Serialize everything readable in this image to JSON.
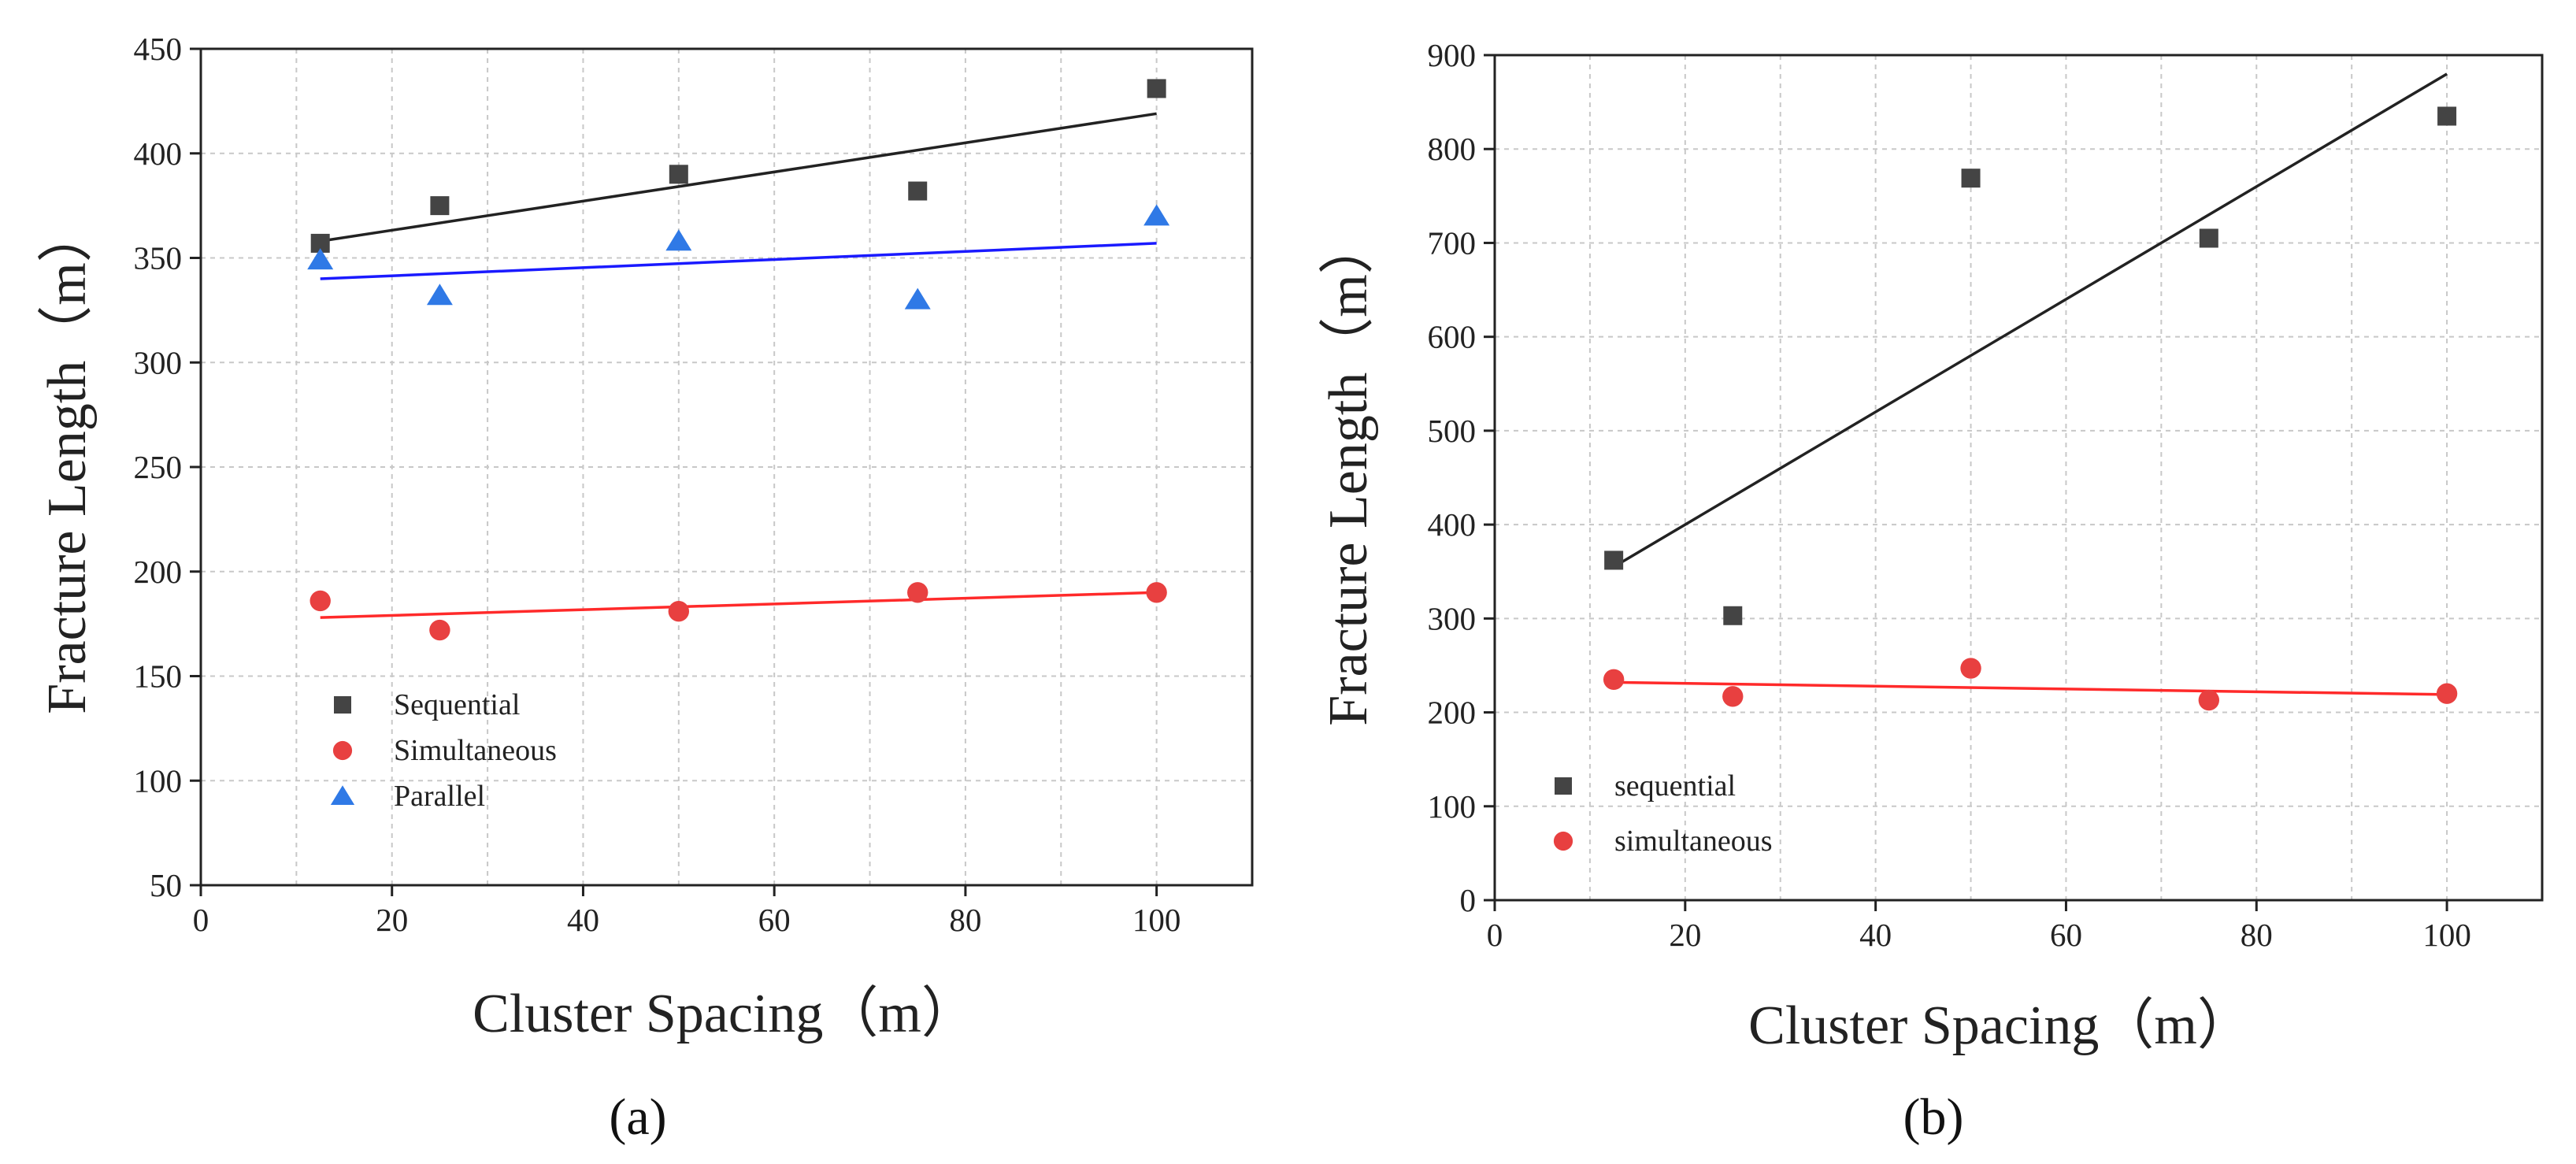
{
  "chart_data": [
    {
      "type": "scatter",
      "panel_label": "(a)",
      "xlabel": "Cluster Spacing（m）",
      "ylabel": "Fracture Length（m）",
      "xlim": [
        0,
        110
      ],
      "ylim": [
        50,
        450
      ],
      "xticks": [
        0,
        20,
        40,
        60,
        80,
        100
      ],
      "yticks": [
        50,
        100,
        150,
        200,
        250,
        300,
        350,
        400,
        450
      ],
      "grid": true,
      "legend_position": "bottom-left",
      "series": [
        {
          "name": "Sequential",
          "marker": "square",
          "color": "#444444",
          "fit_color": "#222222",
          "x": [
            12.5,
            25,
            50,
            75,
            100
          ],
          "y": [
            357,
            375,
            390,
            382,
            431
          ],
          "fit": {
            "x": [
              12.5,
              100
            ],
            "y": [
              358,
              419
            ]
          }
        },
        {
          "name": "Simultaneous",
          "marker": "circle",
          "color": "#e84040",
          "fit_color": "#ff2a2a",
          "x": [
            12.5,
            25,
            50,
            75,
            100
          ],
          "y": [
            186,
            172,
            181,
            190,
            190
          ],
          "fit": {
            "x": [
              12.5,
              100
            ],
            "y": [
              178,
              190
            ]
          }
        },
        {
          "name": "Parallel",
          "marker": "triangle",
          "color": "#2f79e6",
          "fit_color": "#1a1aff",
          "x": [
            12.5,
            25,
            50,
            75,
            100
          ],
          "y": [
            349,
            332,
            358,
            330,
            370
          ],
          "fit": {
            "x": [
              12.5,
              100
            ],
            "y": [
              340,
              357
            ]
          }
        }
      ]
    },
    {
      "type": "scatter",
      "panel_label": "(b)",
      "xlabel": "Cluster Spacing（m）",
      "ylabel": "Fracture Length（m）",
      "xlim": [
        0,
        110
      ],
      "ylim": [
        0,
        900
      ],
      "xticks": [
        0,
        20,
        40,
        60,
        80,
        100
      ],
      "yticks": [
        0,
        100,
        200,
        300,
        400,
        500,
        600,
        700,
        800,
        900
      ],
      "grid": true,
      "legend_position": "bottom-left",
      "series": [
        {
          "name": "sequential",
          "marker": "square",
          "color": "#444444",
          "fit_color": "#222222",
          "x": [
            12.5,
            25,
            50,
            75,
            100
          ],
          "y": [
            362,
            303,
            769,
            705,
            835
          ],
          "fit": {
            "x": [
              12.5,
              100
            ],
            "y": [
              355,
              880
            ]
          }
        },
        {
          "name": "simultaneous",
          "marker": "circle",
          "color": "#e84040",
          "fit_color": "#ff2a2a",
          "x": [
            12.5,
            25,
            50,
            75,
            100
          ],
          "y": [
            235,
            217,
            247,
            213,
            220
          ],
          "fit": {
            "x": [
              12.5,
              100
            ],
            "y": [
              232,
              219
            ]
          }
        }
      ]
    }
  ]
}
